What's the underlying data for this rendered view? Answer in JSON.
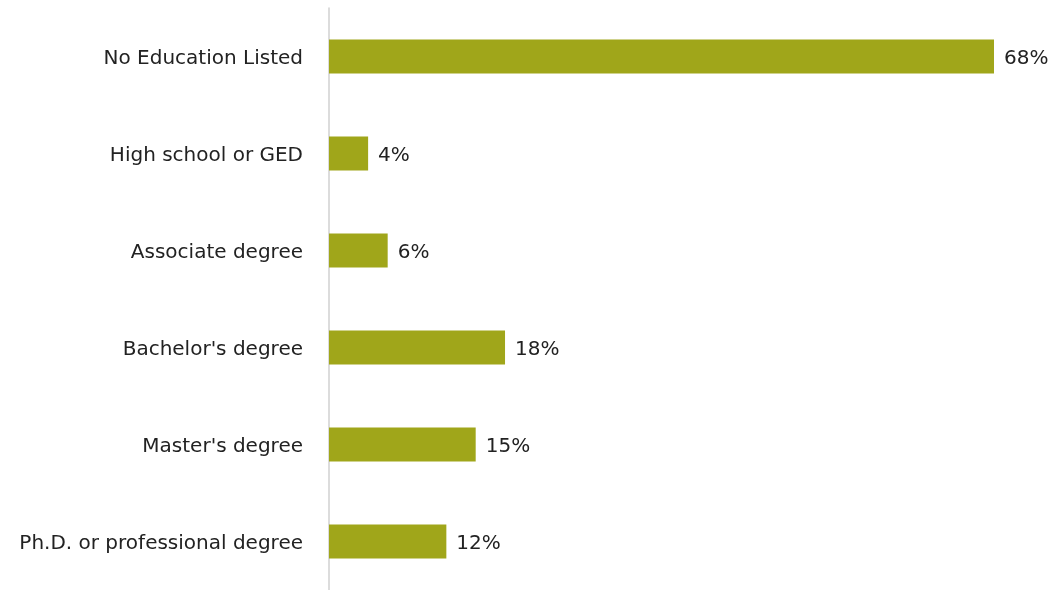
{
  "chart_data": {
    "type": "bar",
    "orientation": "horizontal",
    "categories": [
      "No Education Listed",
      "High school or GED",
      "Associate degree",
      "Bachelor's degree",
      "Master's degree",
      "Ph.D. or professional degree"
    ],
    "values": [
      68,
      4,
      6,
      18,
      15,
      12
    ],
    "color": "#a0a61a",
    "value_labels": [
      "68%",
      "4%",
      "6%",
      "18%",
      "15%",
      "12%"
    ]
  }
}
